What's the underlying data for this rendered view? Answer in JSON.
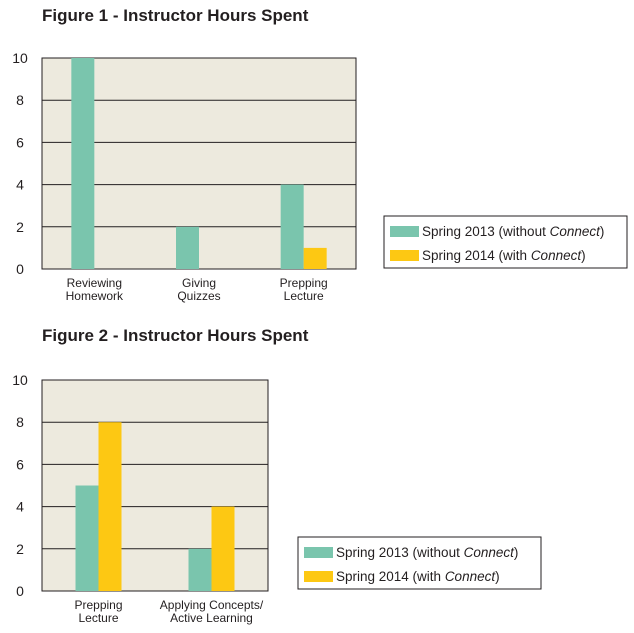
{
  "chart_data": [
    {
      "type": "bar",
      "title": "Figure 1 - Instructor Hours Spent",
      "categories": [
        [
          "Reviewing",
          "Homework"
        ],
        [
          "Giving",
          "Quizzes"
        ],
        [
          "Prepping",
          "Lecture"
        ]
      ],
      "series": [
        {
          "name": "Spring 2013 (without Connect)",
          "name_parts": [
            "Spring 2013 (without ",
            "Connect",
            ")"
          ],
          "color": "#7ac5ad",
          "values": [
            10,
            2,
            4
          ]
        },
        {
          "name": "Spring 2014 (with Connect)",
          "name_parts": [
            "Spring 2014 (with ",
            "Connect",
            ")"
          ],
          "color": "#fdc813",
          "values": [
            0,
            0,
            1
          ]
        }
      ],
      "ylim": [
        0,
        10
      ],
      "yticks": [
        0,
        2,
        4,
        6,
        8,
        10
      ],
      "grid": true,
      "legend": "right"
    },
    {
      "type": "bar",
      "title": "Figure 2 - Instructor Hours Spent",
      "categories": [
        [
          "Prepping",
          "Lecture"
        ],
        [
          "Applying Concepts/",
          "Active Learning"
        ]
      ],
      "series": [
        {
          "name": "Spring 2013 (without Connect)",
          "name_parts": [
            "Spring 2013 (without ",
            "Connect",
            ")"
          ],
          "color": "#7ac5ad",
          "values": [
            5,
            2
          ]
        },
        {
          "name": "Spring 2014 (with Connect)",
          "name_parts": [
            "Spring 2014 (with ",
            "Connect",
            ")"
          ],
          "color": "#fdc813",
          "values": [
            8,
            4
          ]
        }
      ],
      "ylim": [
        0,
        10
      ],
      "yticks": [
        0,
        2,
        4,
        6,
        8,
        10
      ],
      "grid": true,
      "legend": "right"
    }
  ]
}
